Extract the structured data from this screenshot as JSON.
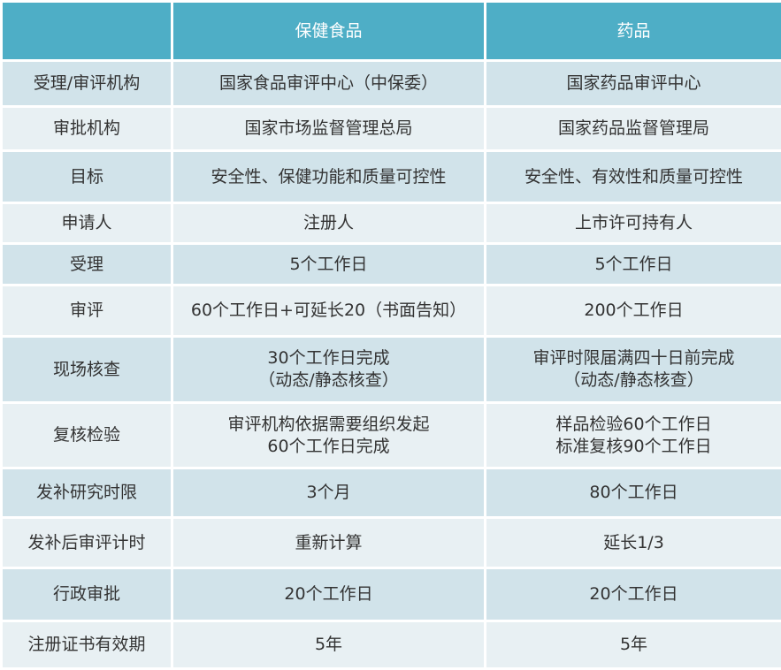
{
  "table": {
    "columns": [
      "保健食品",
      "药品"
    ],
    "rows": [
      [
        "受理/审评机构",
        "国家食品审评中心（中保委）",
        "国家药品审评中心"
      ],
      [
        "审批机构",
        "国家市场监督管理总局",
        "国家药品监督管理局"
      ],
      [
        "目标",
        "安全性、保健功能和质量可控性",
        "安全性、有效性和质量可控性"
      ],
      [
        "申请人",
        "注册人",
        "上市许可持有人"
      ],
      [
        "受理",
        "5个工作日",
        "5个工作日"
      ],
      [
        "审评",
        "60个工作日+可延长20（书面告知）",
        "200个工作日"
      ],
      [
        "现场核查",
        "30个工作日完成\n（动态/静态核查）",
        "审评时限届满四十日前完成\n（动态/静态核查）"
      ],
      [
        "复核检验",
        "审评机构依据需要组织发起\n60个工作日完成",
        "样品检验60个工作日\n标准复核90个工作日"
      ],
      [
        "发补研究时限",
        "3个月",
        "80个工作日"
      ],
      [
        "发补后审评计时",
        "重新计算",
        "延长1/3"
      ],
      [
        "行政审批",
        "20个工作日",
        "20个工作日"
      ],
      [
        "注册证书有效期",
        "5年",
        "5年"
      ]
    ]
  }
}
